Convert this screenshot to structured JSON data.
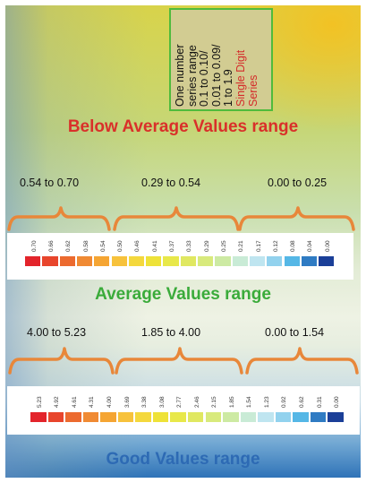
{
  "note": {
    "lines": [
      "One number",
      "series range",
      "0.1 to 0.10/",
      "0.01 to 0.09/",
      "1 to 1.9"
    ],
    "highlight_lines": [
      "Single Digit",
      "Series"
    ]
  },
  "headings": {
    "below_average": "Below Average Values range",
    "average": "Average Values range",
    "good": "Good Values range"
  },
  "scale_1": {
    "range_labels": [
      "0.54 to 0.70",
      "0.29 to 0.54",
      "0.00 to 0.25"
    ],
    "ticks": [
      "0.70",
      "0.66",
      "0.62",
      "0.58",
      "0.54",
      "0.50",
      "0.46",
      "0.41",
      "0.37",
      "0.33",
      "0.29",
      "0.25",
      "0.21",
      "0.17",
      "0.12",
      "0.08",
      "0.04",
      "0.00"
    ]
  },
  "scale_2": {
    "range_labels": [
      "4.00 to 5.23",
      "1.85 to 4.00",
      "0.00 to 1.54"
    ],
    "ticks": [
      "5.23",
      "4.92",
      "4.61",
      "4.31",
      "4.00",
      "3.69",
      "3.38",
      "3.08",
      "2.77",
      "2.46",
      "2.15",
      "1.85",
      "1.54",
      "1.23",
      "0.92",
      "0.62",
      "0.31",
      "0.00"
    ]
  },
  "colors": {
    "swatches": [
      "#e3242b",
      "#e8452c",
      "#ec6a2f",
      "#f08a33",
      "#f5a533",
      "#f7c23c",
      "#f4d83d",
      "#eee238",
      "#e8e84a",
      "#e0e861",
      "#d8ea7c",
      "#cdeaa3",
      "#c9ebd6",
      "#bfe5f0",
      "#92d2ee",
      "#55b7e6",
      "#2f7bc3",
      "#1b3f98"
    ],
    "heading_below": "#d9302a",
    "heading_average": "#3aab3a",
    "heading_good": "#2d6ab4",
    "brace": "#e8873a",
    "note_border": "#4fbb3c",
    "note_fill": "#d2cc92"
  }
}
